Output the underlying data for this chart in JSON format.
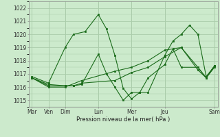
{
  "background_color": "#cceacc",
  "grid_color": "#aaccaa",
  "line_color": "#1a6b1a",
  "xlabel": "Pression niveau de la mer( hPa )",
  "ylim": [
    1014.5,
    1022.5
  ],
  "yticks": [
    1015,
    1016,
    1017,
    1018,
    1019,
    1020,
    1021,
    1022
  ],
  "xlim": [
    -0.2,
    11.2
  ],
  "day_positions": [
    0,
    1,
    2,
    4,
    6,
    8,
    11
  ],
  "day_labels": [
    "Mar",
    "Ven",
    "Dim",
    "Lun",
    "Mer",
    "Jeu",
    "Sam"
  ],
  "series": [
    {
      "x": [
        0,
        1,
        2,
        2.5,
        3.2,
        4,
        4.5,
        5,
        5.5,
        6,
        6.5,
        7,
        8,
        8.5,
        9,
        9.5,
        10,
        10.5,
        11
      ],
      "y": [
        1016.8,
        1016.3,
        1019.0,
        1020.0,
        1020.2,
        1021.5,
        1020.4,
        1018.4,
        1015.9,
        1015.1,
        1015.6,
        1015.6,
        1018.4,
        1019.5,
        1020.0,
        1020.7,
        1020.0,
        1016.8,
        1017.6
      ]
    },
    {
      "x": [
        0,
        1,
        2,
        2.5,
        3,
        4,
        4.5,
        5,
        5.5,
        6,
        6.5,
        7,
        8,
        8.5,
        9,
        10,
        10.5,
        11
      ],
      "y": [
        1016.7,
        1016.2,
        1016.1,
        1016.1,
        1016.2,
        1018.5,
        1017.0,
        1016.0,
        1015.0,
        1015.6,
        1015.6,
        1016.7,
        1017.7,
        1018.9,
        1017.5,
        1017.5,
        1016.7,
        1017.5
      ]
    },
    {
      "x": [
        0,
        1,
        2,
        2.5,
        3,
        5,
        6,
        7,
        8,
        9,
        10,
        10.5,
        11
      ],
      "y": [
        1016.7,
        1016.1,
        1016.1,
        1016.1,
        1016.3,
        1016.5,
        1017.1,
        1017.5,
        1018.3,
        1019.0,
        1017.5,
        1016.7,
        1017.6
      ]
    },
    {
      "x": [
        0,
        1,
        2,
        3,
        5,
        6,
        7,
        8,
        9,
        10,
        10.5,
        11
      ],
      "y": [
        1016.7,
        1016.0,
        1016.0,
        1016.5,
        1017.2,
        1017.5,
        1018.0,
        1018.8,
        1019.0,
        1017.3,
        1016.7,
        1017.6
      ]
    }
  ]
}
